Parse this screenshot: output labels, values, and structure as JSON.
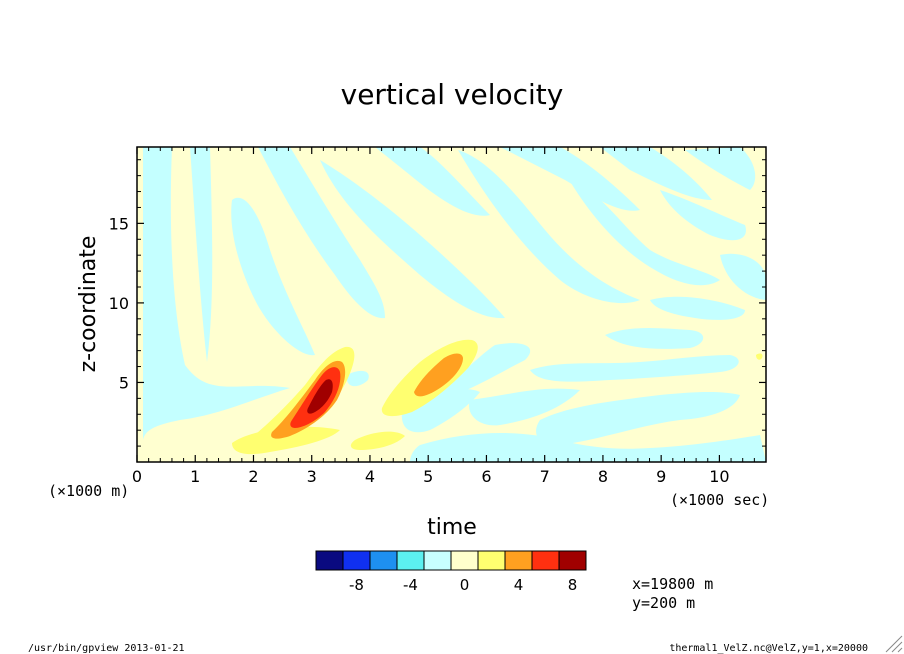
{
  "chart_data": {
    "type": "heatmap",
    "title": "vertical velocity",
    "xlabel": "time",
    "ylabel": "z-coordinate",
    "x_unit_note": "(×1000 sec)",
    "y_unit_note": "(×1000 m)",
    "xlim": [
      0,
      10.8
    ],
    "ylim": [
      0,
      19.8
    ],
    "x_ticks": [
      "0",
      "1",
      "2",
      "3",
      "4",
      "5",
      "6",
      "7",
      "8",
      "9",
      "10"
    ],
    "y_ticks": [
      "5",
      "10",
      "15"
    ],
    "colorbar": {
      "tick_labels": [
        "-8",
        "-4",
        "0",
        "4",
        "8"
      ],
      "colors": [
        "#0a0a80",
        "#1030f0",
        "#1e90f0",
        "#5cf0f0",
        "#c8ffff",
        "#ffffcc",
        "#ffff70",
        "#ffa020",
        "#ff3010",
        "#a00000"
      ]
    },
    "annotations": [
      "x=19800 m",
      "y=200 m"
    ],
    "palette": {
      "bg": "#ffffd0",
      "neg_weak": "#c4ffff",
      "pos_weak": "#ffff70",
      "pos_mid": "#ffa020",
      "pos_strong": "#ff3010",
      "pos_max": "#a00000"
    }
  },
  "footer": {
    "left": "/usr/bin/gpview  2013-01-21",
    "right": "thermal1_VelZ.nc@VelZ,y=1,x=20000"
  }
}
